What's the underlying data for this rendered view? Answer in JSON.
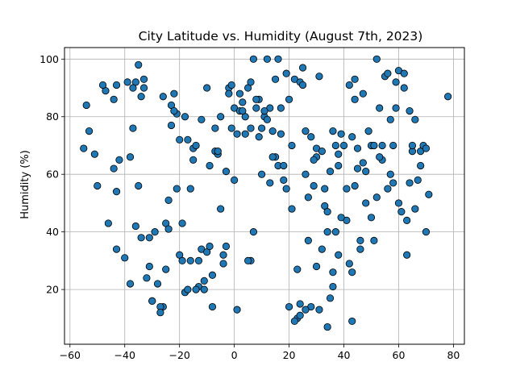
{
  "chart_data": {
    "type": "scatter",
    "title": "City Latitude vs. Humidity (August 7th, 2023)",
    "xlabel": "",
    "ylabel": "Humidity (%)",
    "xlim": [
      -62,
      84
    ],
    "ylim": [
      1,
      104
    ],
    "xticks": [
      -60,
      -40,
      -20,
      0,
      20,
      40,
      60,
      80
    ],
    "yticks": [
      20,
      40,
      60,
      80,
      100
    ],
    "grid": true,
    "marker_color": "#1f77b4",
    "edge_color": "#000000",
    "series": [
      {
        "x": [
          -54,
          -53,
          -51,
          -50,
          -47,
          -46,
          -44,
          -43,
          -43,
          -42,
          -40,
          -38,
          -37,
          -36,
          -35,
          -34,
          -33,
          -32,
          -31,
          -30,
          -28,
          -26,
          -25,
          -24,
          -23,
          -22,
          -21,
          -20,
          -19,
          -18,
          -17,
          -16,
          -15,
          -14,
          -13,
          -12,
          -11,
          -10,
          -9,
          -8,
          -7,
          -6,
          -5,
          -4,
          -3,
          -2,
          -1,
          0,
          1,
          2,
          3,
          4,
          5,
          6,
          7,
          8,
          9,
          10,
          11,
          12,
          13,
          14,
          15,
          16,
          17,
          18,
          19,
          20,
          21,
          22,
          23,
          24,
          25,
          26,
          27,
          28,
          29,
          30,
          31,
          32,
          33,
          34,
          35,
          36,
          37,
          38,
          39,
          40,
          41,
          42,
          43,
          44,
          45,
          46,
          47,
          48,
          49,
          50,
          51,
          52,
          53,
          54,
          55,
          56,
          57,
          58,
          59,
          60,
          61,
          62,
          63,
          64,
          65,
          66,
          67,
          68,
          69,
          70,
          71,
          78,
          -55,
          -48,
          -44,
          -39,
          -36,
          -34,
          -30,
          -27,
          -25,
          -23,
          -21,
          -19,
          -15,
          -12,
          -9,
          -6,
          -3,
          0,
          3,
          6,
          9,
          12,
          15,
          18,
          21,
          24,
          27,
          30,
          33,
          36,
          39,
          42,
          45,
          48,
          51,
          54,
          57,
          60,
          63,
          66,
          -43,
          -37,
          -33,
          -26,
          -20,
          -16,
          -10,
          -5,
          -1,
          4,
          8,
          13,
          17,
          20,
          23,
          26,
          29,
          32,
          35,
          38,
          41,
          44,
          47,
          50,
          53,
          56,
          59,
          62,
          65,
          68,
          -35,
          -29,
          -22,
          -18,
          -13,
          -7,
          -2,
          2,
          6,
          11,
          16,
          19,
          25,
          31,
          34,
          37,
          43,
          46,
          52,
          58,
          64,
          70,
          44,
          43,
          38,
          36,
          34,
          30,
          28,
          26,
          24,
          22,
          14,
          10,
          7,
          5,
          1,
          -4,
          -8,
          -11,
          -14,
          -17,
          -24,
          -27,
          -31,
          -38
        ],
        "y": [
          84,
          75,
          67,
          56,
          89,
          43,
          62,
          54,
          34,
          65,
          31,
          66,
          76,
          42,
          56,
          87,
          93,
          24,
          28,
          16,
          22,
          14,
          43,
          51,
          77,
          88,
          55,
          32,
          30,
          19,
          72,
          55,
          69,
          70,
          21,
          34,
          20,
          33,
          35,
          25,
          68,
          67,
          48,
          32,
          61,
          90,
          76,
          83,
          74,
          82,
          85,
          80,
          90,
          76,
          100,
          83,
          73,
          76,
          80,
          100,
          83,
          75,
          66,
          63,
          74,
          58,
          55,
          86,
          70,
          93,
          27,
          15,
          97,
          60,
          52,
          73,
          56,
          66,
          13,
          34,
          49,
          40,
          17,
          21,
          40,
          63,
          74,
          70,
          44,
          29,
          73,
          56,
          62,
          34,
          88,
          50,
          75,
          70,
          37,
          52,
          83,
          65,
          94,
          55,
          79,
          57,
          92,
          96,
          47,
          90,
          32,
          57,
          68,
          79,
          58,
          68,
          70,
          69,
          53,
          87,
          69,
          91,
          86,
          92,
          92,
          38,
          16,
          14,
          27,
          84,
          81,
          43,
          65,
          79,
          63,
          68,
          35,
          58,
          82,
          30,
          86,
          79,
          93,
          63,
          48,
          92,
          37,
          69,
          55,
          75,
          45,
          91,
          69,
          61,
          70,
          70,
          60,
          50,
          44,
          48,
          91,
          90,
          90,
          87,
          72,
          30,
          90,
          80,
          91,
          74,
          86,
          57,
          83,
          14,
          10,
          75,
          65,
          68,
          61,
          67,
          55,
          93,
          64,
          45,
          66,
          95,
          83,
          95,
          70,
          63,
          98,
          40,
          82,
          80,
          30,
          76,
          88,
          88,
          92,
          82,
          100,
          95,
          91,
          94,
          47,
          70,
          26,
          37,
          100,
          70,
          82,
          40,
          86,
          9,
          32,
          26,
          7,
          28,
          14,
          13,
          11,
          9,
          66,
          60,
          40,
          30,
          13,
          29,
          14,
          23,
          20,
          20,
          41,
          12,
          38,
          22
        ]
      }
    ]
  }
}
